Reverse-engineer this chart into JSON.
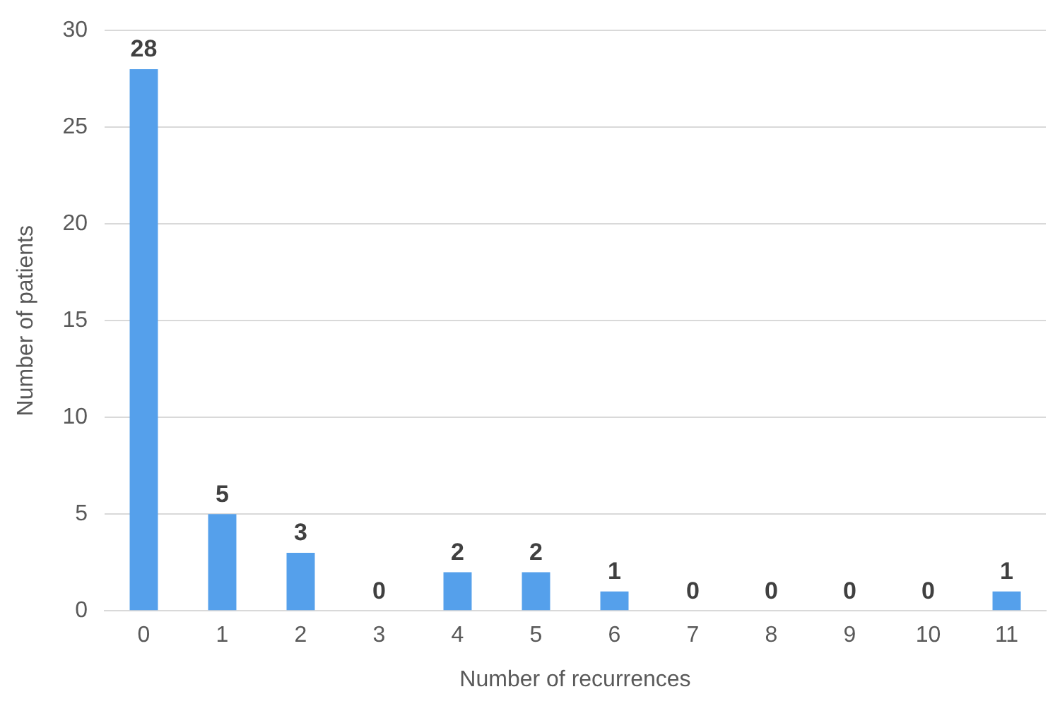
{
  "chart_data": {
    "type": "bar",
    "xlabel": "Number of recurrences",
    "ylabel": "Number of patients",
    "categories": [
      "0",
      "1",
      "2",
      "3",
      "4",
      "5",
      "6",
      "7",
      "8",
      "9",
      "10",
      "11"
    ],
    "values": [
      28,
      5,
      3,
      0,
      2,
      2,
      1,
      0,
      0,
      0,
      0,
      1
    ],
    "color": "#55a0eb",
    "ylim": [
      0,
      30
    ],
    "yticks": [
      0,
      5,
      10,
      15,
      20,
      25,
      30
    ],
    "grid": "y",
    "data_labels": true,
    "legend": false
  }
}
